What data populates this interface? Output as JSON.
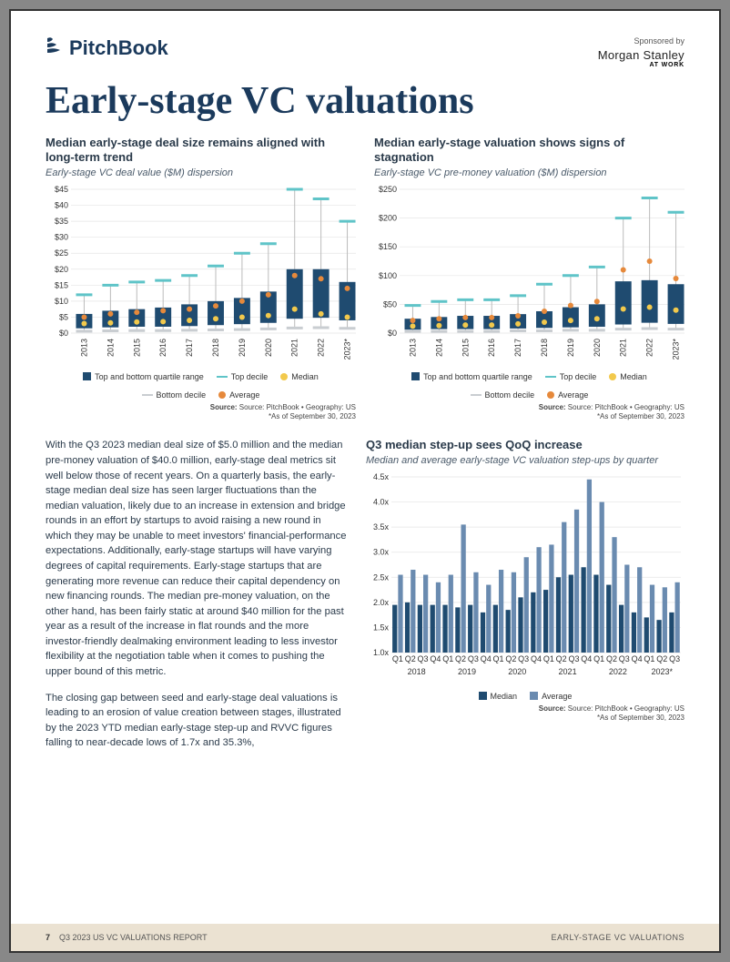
{
  "header": {
    "logo_text": "PitchBook",
    "sponsor_label": "Sponsored by",
    "sponsor_name": "Morgan Stanley",
    "sponsor_sub": "AT WORK"
  },
  "title": "Early-stage VC valuations",
  "colors": {
    "navy": "#1b3a5c",
    "bar": "#1f4b70",
    "teal": "#5fc4c8",
    "yellow": "#f2c94c",
    "orange": "#e6893b",
    "grey": "#c9cdd1",
    "lightblue_bar": "#6a8bb0",
    "text": "#2a3a4a",
    "footer_bg": "#ebe2d2"
  },
  "chart1": {
    "type": "dispersion-bar",
    "title": "Median early-stage deal size remains aligned with long-term trend",
    "subtitle": "Early-stage VC deal value ($M) dispersion",
    "ymin": 0,
    "ymax": 45,
    "ystep": 5,
    "yprefix": "$",
    "categories": [
      "2013",
      "2014",
      "2015",
      "2016",
      "2017",
      "2018",
      "2019",
      "2020",
      "2021",
      "2022",
      "2023*"
    ],
    "q1": [
      1.5,
      1.8,
      2.0,
      2.0,
      2.2,
      2.5,
      2.8,
      3.2,
      4.5,
      4.8,
      4.0
    ],
    "q3": [
      6.0,
      7.0,
      7.5,
      8.0,
      9.0,
      10.0,
      11.0,
      13.0,
      20.0,
      20.0,
      16.0
    ],
    "top_decile": [
      12.0,
      15.0,
      16.0,
      16.5,
      18.0,
      21.0,
      25.0,
      28.0,
      45.0,
      42.0,
      35.0
    ],
    "bot_decile": [
      0.6,
      0.7,
      0.8,
      0.8,
      0.9,
      1.0,
      1.1,
      1.3,
      1.6,
      1.7,
      1.5
    ],
    "median": [
      3.0,
      3.2,
      3.5,
      3.6,
      4.0,
      4.5,
      5.0,
      5.5,
      7.5,
      6.0,
      5.0
    ],
    "average": [
      5.0,
      6.0,
      6.5,
      7.0,
      7.5,
      8.5,
      10.0,
      12.0,
      18.0,
      17.0,
      14.0
    ],
    "source_line1": "Source: PitchBook  •  Geography: US",
    "source_line2": "*As of September 30, 2023"
  },
  "chart2": {
    "type": "dispersion-bar",
    "title": "Median early-stage valuation shows signs of stagnation",
    "subtitle": "Early-stage VC pre-money valuation ($M) dispersion",
    "ymin": 0,
    "ymax": 250,
    "ystep": 50,
    "yprefix": "$",
    "categories": [
      "2013",
      "2014",
      "2015",
      "2016",
      "2017",
      "2018",
      "2019",
      "2020",
      "2021",
      "2022",
      "2023*"
    ],
    "q1": [
      6,
      7,
      7,
      7,
      8,
      9,
      10,
      11,
      15,
      18,
      16
    ],
    "q3": [
      25,
      28,
      30,
      30,
      33,
      38,
      45,
      50,
      90,
      92,
      85
    ],
    "top_decile": [
      48,
      55,
      58,
      58,
      65,
      85,
      100,
      115,
      200,
      235,
      210
    ],
    "bot_decile": [
      3,
      3,
      3,
      3,
      4,
      4,
      5,
      5,
      7,
      8,
      7
    ],
    "median": [
      12,
      13,
      14,
      14,
      16,
      19,
      22,
      25,
      42,
      45,
      40
    ],
    "average": [
      22,
      25,
      27,
      27,
      30,
      38,
      48,
      55,
      110,
      125,
      95
    ],
    "source_line1": "Source: PitchBook  •  Geography: US",
    "source_line2": "*As of September 30, 2023"
  },
  "chart3": {
    "type": "grouped-bar",
    "title": "Q3 median step-up sees QoQ increase",
    "subtitle": "Median and average early-stage VC valuation step-ups by quarter",
    "ymin": 1.0,
    "ymax": 4.5,
    "ystep": 0.5,
    "ysuffix": "x",
    "year_groups": [
      "2018",
      "2019",
      "2020",
      "2021",
      "2022",
      "2023*"
    ],
    "quarters": [
      "Q1",
      "Q2",
      "Q3",
      "Q4",
      "Q1",
      "Q2",
      "Q3",
      "Q4",
      "Q1",
      "Q2",
      "Q3",
      "Q4",
      "Q1",
      "Q2",
      "Q3",
      "Q4",
      "Q1",
      "Q2",
      "Q3",
      "Q4",
      "Q1",
      "Q2",
      "Q3"
    ],
    "median": [
      1.95,
      2.0,
      1.95,
      1.95,
      1.95,
      1.9,
      1.95,
      1.8,
      1.95,
      1.85,
      2.1,
      2.2,
      2.25,
      2.5,
      2.55,
      2.7,
      2.55,
      2.35,
      1.95,
      1.8,
      1.7,
      1.65,
      1.8
    ],
    "average": [
      2.55,
      2.65,
      2.55,
      2.4,
      2.55,
      3.55,
      2.6,
      2.35,
      2.65,
      2.6,
      2.9,
      3.1,
      3.15,
      3.6,
      3.85,
      4.45,
      4.0,
      3.3,
      2.75,
      2.7,
      2.35,
      2.3,
      2.4
    ],
    "legend": {
      "median": "Median",
      "average": "Average"
    },
    "source_line1": "Source: PitchBook  •  Geography: US",
    "source_line2": "*As of September 30, 2023"
  },
  "legend_dispersion": {
    "quartile": "Top and bottom quartile range",
    "top_decile": "Top decile",
    "median": "Median",
    "bottom_decile": "Bottom decile",
    "average": "Average"
  },
  "body": {
    "p1": "With the Q3 2023 median deal size of $5.0 million and the median pre-money valuation of $40.0 million, early-stage deal metrics sit well below those of recent years. On a quarterly basis, the early-stage median deal size has seen larger fluctuations than the median valuation, likely due to an increase in extension and bridge rounds in an effort by startups to avoid raising a new round in which they may be unable to meet investors' financial-performance expectations. Additionally, early-stage startups will have varying degrees of capital requirements. Early-stage startups that are generating more revenue can reduce their capital dependency on new financing rounds. The median pre-money valuation, on the other hand, has been fairly static at around $40 million for the past year as a result of the increase in flat rounds and the more investor-friendly dealmaking environment leading to less investor flexibility at the negotiation table when it comes to pushing the upper bound of this metric.",
    "p2": "The closing gap between seed and early-stage deal valuations is leading to an erosion of value creation between stages, illustrated by the 2023 YTD median early-stage step-up and RVVC figures falling to near-decade lows of 1.7x and 35.3%,"
  },
  "footer": {
    "page": "7",
    "report": "Q3 2023 US VC VALUATIONS REPORT",
    "section": "EARLY-STAGE VC VALUATIONS"
  }
}
